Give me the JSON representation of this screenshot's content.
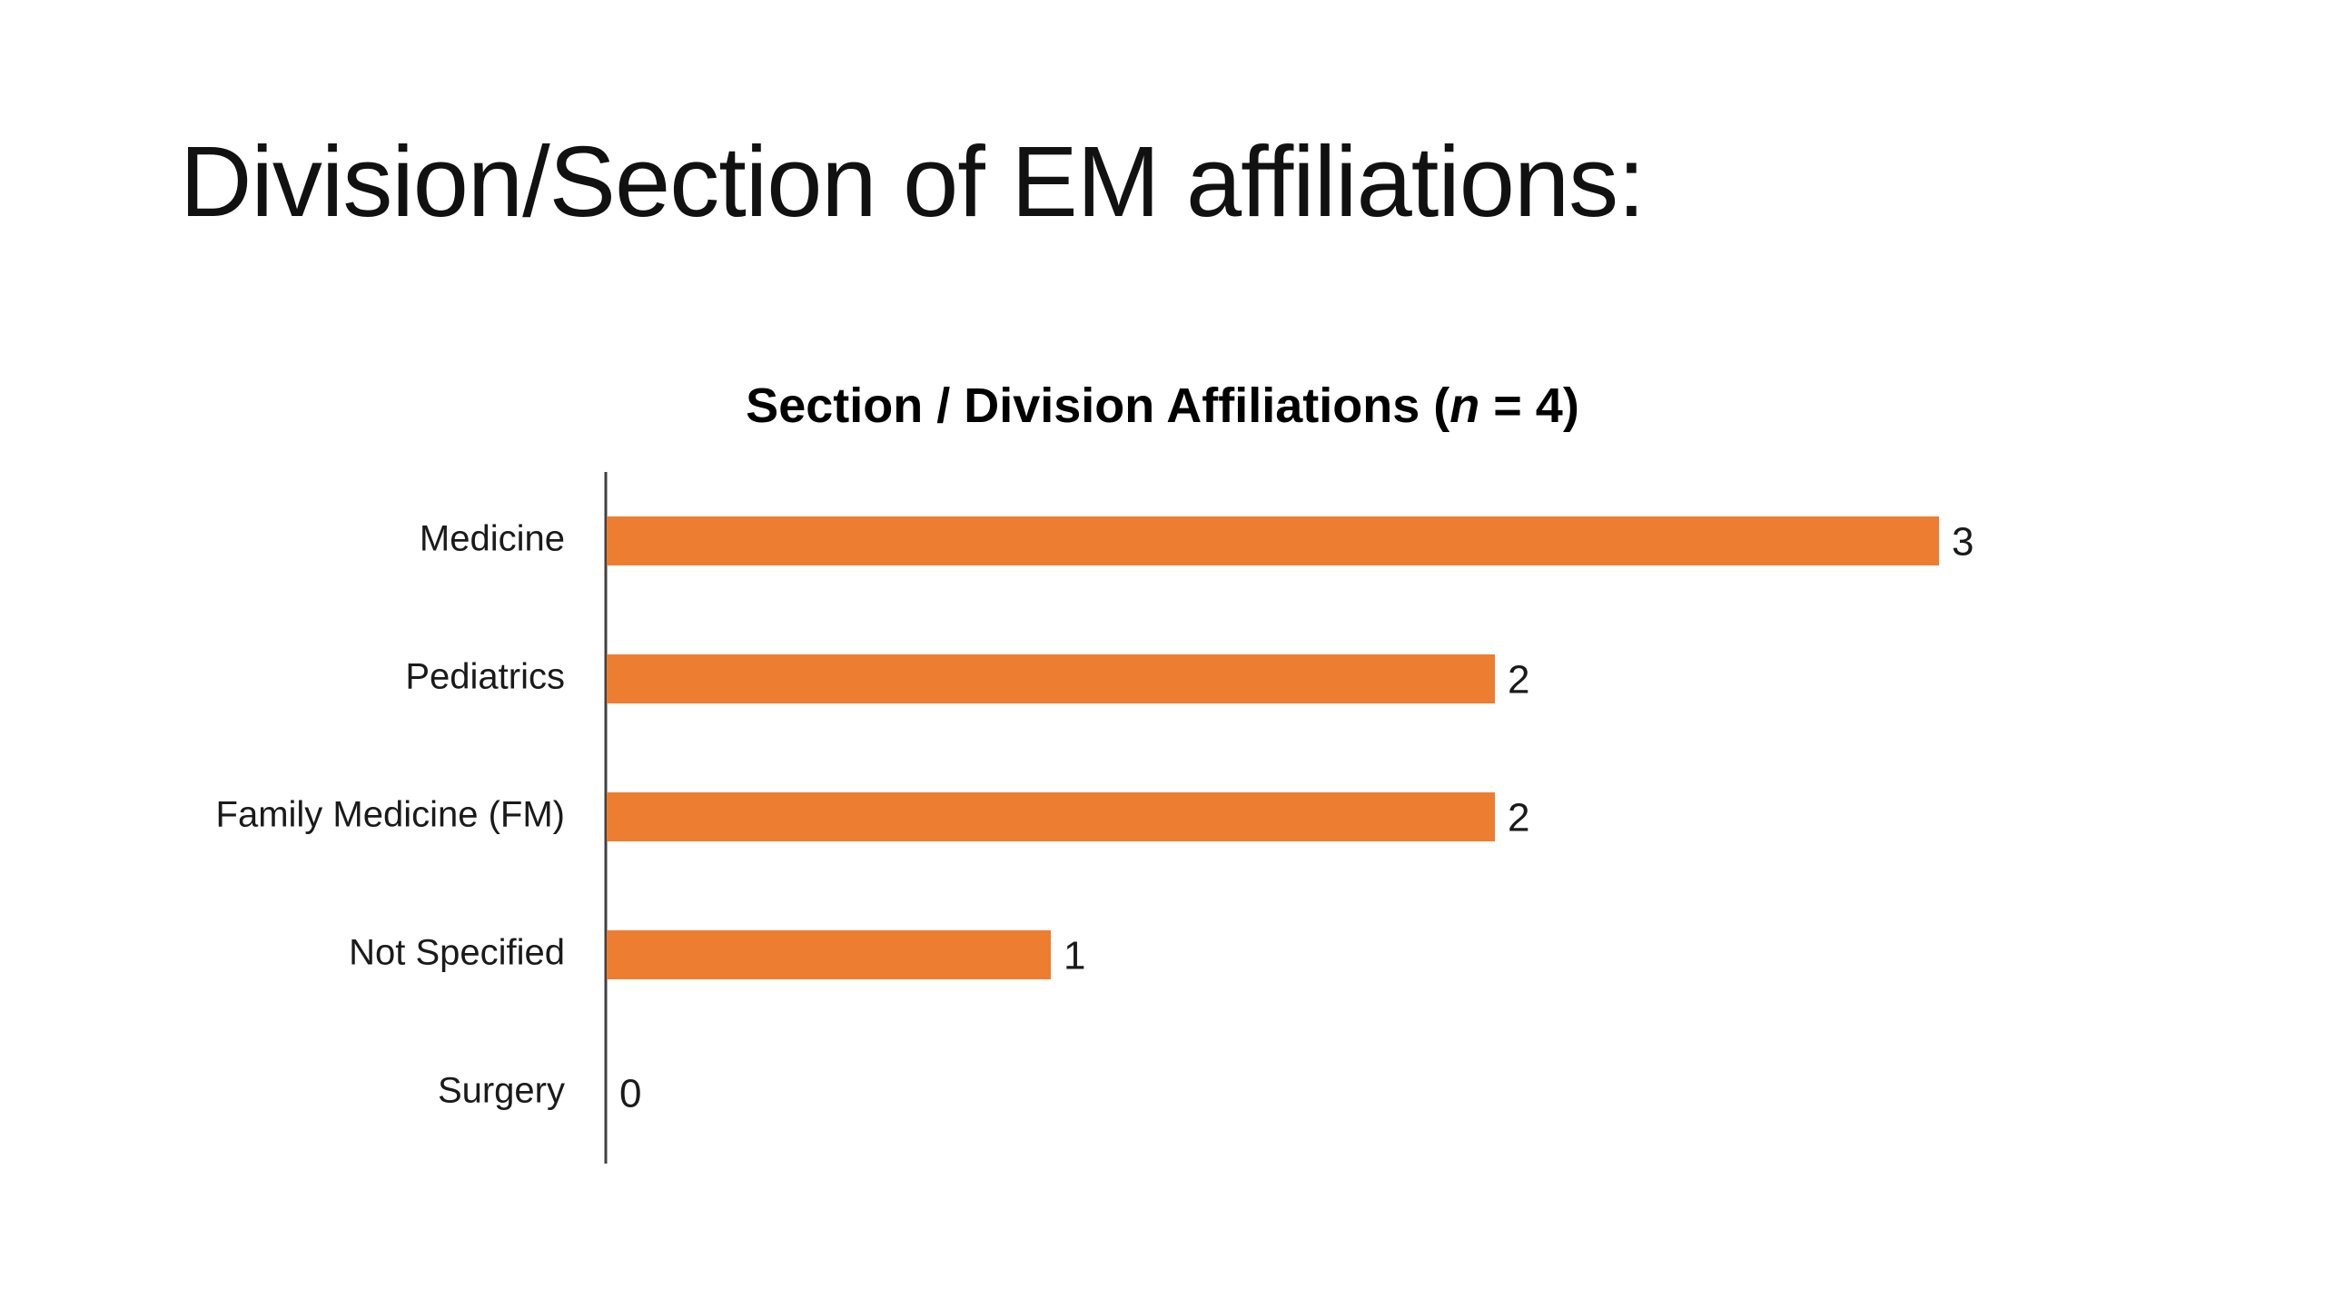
{
  "slide": {
    "title": "Division/Section of EM affiliations:"
  },
  "chart_data": {
    "type": "bar",
    "orientation": "horizontal",
    "title": "Section / Division Affiliations (n = 4)",
    "title_parts": {
      "prefix": "Section / Division Affiliations (",
      "variable": "n",
      "suffix": " = 4)"
    },
    "categories": [
      "Medicine",
      "Pediatrics",
      "Family Medicine (FM)",
      "Not Specified",
      "Surgery"
    ],
    "values": [
      3,
      2,
      2,
      1,
      0
    ],
    "value_labels": [
      "3",
      "2",
      "2",
      "1",
      "0"
    ],
    "xlim": [
      0,
      3
    ],
    "grid": false,
    "legend": "none",
    "bar_color": "#ED7D31",
    "axis_color": "#404040"
  }
}
